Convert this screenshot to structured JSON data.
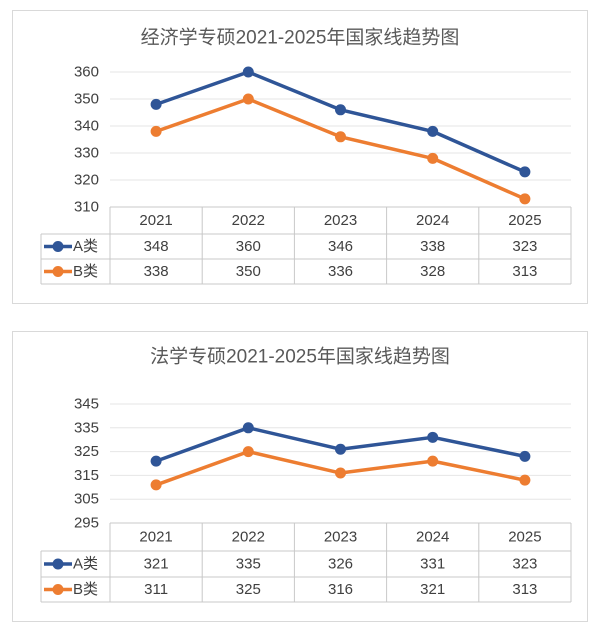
{
  "chart_data": [
    {
      "type": "line",
      "title": "经济学专硕2021-2025年国家线趋势图",
      "categories": [
        "2021",
        "2022",
        "2023",
        "2024",
        "2025"
      ],
      "series": [
        {
          "name": "A类",
          "color": "#2f5597",
          "values": [
            348,
            360,
            346,
            338,
            323
          ]
        },
        {
          "name": "B类",
          "color": "#ed7d31",
          "values": [
            338,
            350,
            336,
            328,
            313
          ]
        }
      ],
      "ylim": [
        310,
        360
      ],
      "yticks": [
        310,
        320,
        330,
        340,
        350,
        360
      ],
      "data_table": true,
      "grid": true
    },
    {
      "type": "line",
      "title": "法学专硕2021-2025年国家线趋势图",
      "categories": [
        "2021",
        "2022",
        "2023",
        "2024",
        "2025"
      ],
      "series": [
        {
          "name": "A类",
          "color": "#2f5597",
          "values": [
            321,
            335,
            326,
            331,
            323
          ]
        },
        {
          "name": "B类",
          "color": "#ed7d31",
          "values": [
            311,
            325,
            316,
            321,
            313
          ]
        }
      ],
      "ylim": [
        295,
        345
      ],
      "yticks": [
        295,
        305,
        315,
        325,
        335,
        345
      ],
      "data_table": true,
      "grid": true
    }
  ]
}
